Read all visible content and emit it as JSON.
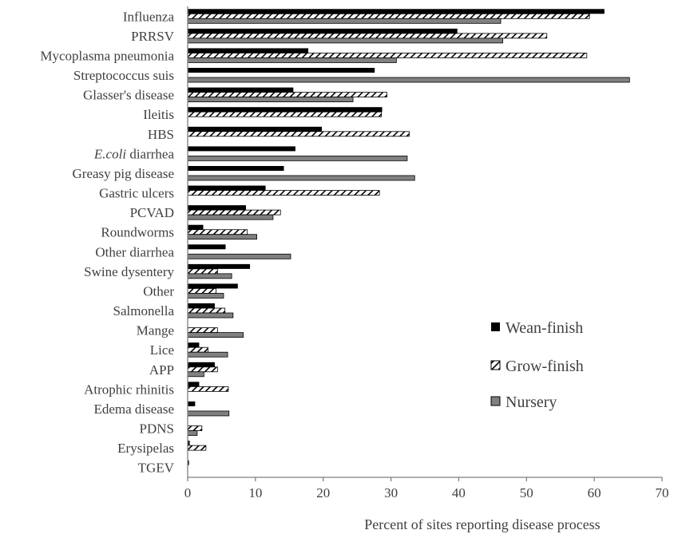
{
  "colors": {
    "wean_finish": "#000000",
    "grow_finish_stroke": "#000000",
    "grow_finish_fill": "#ffffff",
    "nursery": "#808080",
    "text": "#404040",
    "axis": "#7f7f7f"
  },
  "chart_data": {
    "type": "bar",
    "orientation": "horizontal",
    "title": "",
    "xlabel": "Percent of sites reporting disease process",
    "ylabel": "",
    "xlim": [
      0,
      70
    ],
    "xticks": [
      "0",
      "10",
      "20",
      "30",
      "40",
      "50",
      "60",
      "70"
    ],
    "grid": false,
    "legend_position": "right",
    "categories": [
      "Influenza",
      "PRRSV",
      "Mycoplasma pneumonia",
      "Streptococcus suis",
      "Glasser's disease",
      "Ileitis",
      "HBS",
      "E.coli diarrhea",
      "Greasy pig disease",
      "Gastric ulcers",
      "PCVAD",
      "Roundworms",
      "Other diarrhea",
      "Swine dysentery",
      "Other",
      "Salmonella",
      "Mange",
      "Lice",
      "APP",
      "Atrophic rhinitis",
      "Edema disease",
      "PDNS",
      "Erysipelas",
      "TGEV"
    ],
    "series": [
      {
        "name": "Wean-finish",
        "pattern": "solid-black",
        "values": [
          61.5,
          39.8,
          17.8,
          27.6,
          15.6,
          28.7,
          19.8,
          15.9,
          14.2,
          11.5,
          8.6,
          2.3,
          5.6,
          9.2,
          7.4,
          4.0,
          0,
          1.7,
          4.0,
          1.7,
          1.1,
          0,
          0.3,
          0.2
        ]
      },
      {
        "name": "Grow-finish",
        "pattern": "hatched",
        "values": [
          59.3,
          53.0,
          58.9,
          0,
          29.4,
          28.6,
          32.7,
          0,
          0,
          28.3,
          13.7,
          8.8,
          0,
          4.4,
          4.2,
          5.5,
          4.4,
          3.0,
          4.4,
          6.0,
          0,
          2.1,
          2.7,
          0
        ]
      },
      {
        "name": "Nursery",
        "pattern": "solid-gray",
        "values": [
          46.2,
          46.5,
          30.8,
          65.2,
          24.4,
          0,
          0,
          32.4,
          33.5,
          0,
          12.6,
          10.2,
          15.2,
          6.5,
          5.3,
          6.7,
          8.2,
          5.9,
          2.4,
          0,
          6.1,
          1.4,
          0,
          0
        ]
      }
    ]
  }
}
